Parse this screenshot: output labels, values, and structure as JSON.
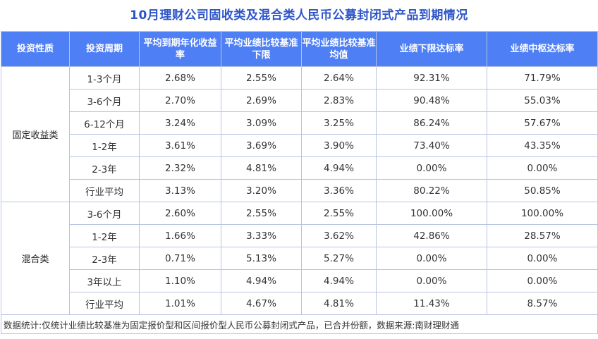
{
  "title": "10月理财公司固收类及混合类人民币公募封闭式产品到期情况",
  "headers": [
    "投资性质",
    "投资周期",
    "平均到期年化收益率",
    "平均业绩比较基准下限",
    "平均业绩比较基准均值",
    "业绩下限达标率",
    "业绩中枢达标率"
  ],
  "groups": [
    {
      "name": "固定收益类",
      "rows": [
        [
          "1-3个月",
          "2.68%",
          "2.55%",
          "2.64%",
          "92.31%",
          "71.79%"
        ],
        [
          "3-6个月",
          "2.70%",
          "2.69%",
          "2.83%",
          "90.48%",
          "55.03%"
        ],
        [
          "6-12个月",
          "3.24%",
          "3.09%",
          "3.25%",
          "86.24%",
          "57.67%"
        ],
        [
          "1-2年",
          "3.61%",
          "3.69%",
          "3.90%",
          "73.40%",
          "43.35%"
        ],
        [
          "2-3年",
          "2.32%",
          "4.81%",
          "4.94%",
          "0.00%",
          "0.00%"
        ],
        [
          "行业平均",
          "3.13%",
          "3.20%",
          "3.36%",
          "80.22%",
          "50.85%"
        ]
      ]
    },
    {
      "name": "混合类",
      "rows": [
        [
          "3-6个月",
          "2.60%",
          "2.55%",
          "2.55%",
          "100.00%",
          "100.00%"
        ],
        [
          "1-2年",
          "1.66%",
          "3.33%",
          "3.62%",
          "42.86%",
          "28.57%"
        ],
        [
          "2-3年",
          "0.71%",
          "5.13%",
          "5.27%",
          "0.00%",
          "0.00%"
        ],
        [
          "3年以上",
          "1.10%",
          "4.94%",
          "4.94%",
          "0.00%",
          "0.00%"
        ],
        [
          "行业平均",
          "1.01%",
          "4.67%",
          "4.81%",
          "11.43%",
          "8.57%"
        ]
      ]
    }
  ],
  "footnote": "数据统计:仅统计业绩比较基准为固定报价型和区间报价型人民币公募封闭式产品，已合并份额，数据来源:南财理财通",
  "colors": {
    "header_bg": "#4f7ff5",
    "title": "#2d55c8",
    "border": "#b7c4e2"
  }
}
